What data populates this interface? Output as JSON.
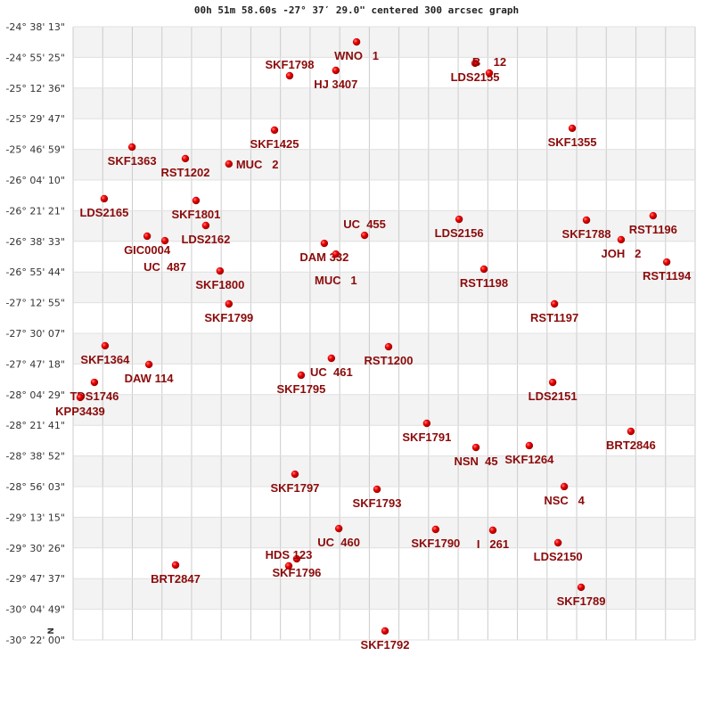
{
  "chart_data": {
    "type": "scatter",
    "title": "00h 51m 58.60s -27° 37′ 29.0\" centered 300 arcsec graph",
    "north_marker": "N",
    "grid": true,
    "x_columns": 21,
    "ylim": [
      -30.3667,
      -24.6369
    ],
    "y_ticks": [
      "-24° 38' 13\"",
      "-24° 55' 25\"",
      "-25° 12' 36\"",
      "-25° 29' 47\"",
      "-25° 46' 59\"",
      "-26° 04' 10\"",
      "-26° 21' 21\"",
      "-26° 38' 33\"",
      "-26° 55' 44\"",
      "-27° 12' 55\"",
      "-27° 30' 07\"",
      "-27° 47' 18\"",
      "-28° 04' 29\"",
      "-28° 21' 41\"",
      "-28° 38' 52\"",
      "-28° 56' 03\"",
      "-29° 13' 15\"",
      "-29° 30' 26\"",
      "-29° 47' 37\"",
      "-30° 04' 49\"",
      "-30° 22' 00\""
    ],
    "colors": {
      "point": "#dd0000",
      "label": "#8b0a0a",
      "band": "#f3f3f3",
      "grid": "#cccccc"
    },
    "points": [
      {
        "name": "WNO   1",
        "x": 9.57,
        "dec": -24.779
      },
      {
        "name": "HJ 3407",
        "x": 8.87,
        "dec": -25.045
      },
      {
        "name": "SKF1798",
        "x": 7.31,
        "dec": -25.095
      },
      {
        "name": "LDS2155",
        "x": 13.57,
        "dec": -24.978
      },
      {
        "name": "B    12",
        "x": 14.05,
        "dec": -25.07
      },
      {
        "name": "SKF1425",
        "x": 6.8,
        "dec": -25.603
      },
      {
        "name": "SKF1355",
        "x": 16.85,
        "dec": -25.586
      },
      {
        "name": "SKF1363",
        "x": 1.99,
        "dec": -25.761
      },
      {
        "name": "RST1202",
        "x": 3.79,
        "dec": -25.869
      },
      {
        "name": "MUC   2",
        "x": 5.26,
        "dec": -25.919
      },
      {
        "name": "LDS2165",
        "x": 1.05,
        "dec": -26.244
      },
      {
        "name": "SKF1801",
        "x": 4.15,
        "dec": -26.261
      },
      {
        "name": "LDS2162",
        "x": 4.48,
        "dec": -26.494
      },
      {
        "name": "GIC0004",
        "x": 2.5,
        "dec": -26.594
      },
      {
        "name": "UC  487",
        "x": 3.1,
        "dec": -26.636
      },
      {
        "name": "DAM 332",
        "x": 8.48,
        "dec": -26.661
      },
      {
        "name": "MUC   1",
        "x": 8.87,
        "dec": -26.761
      },
      {
        "name": "UC  455",
        "x": 9.84,
        "dec": -26.586
      },
      {
        "name": "LDS2156",
        "x": 13.03,
        "dec": -26.436
      },
      {
        "name": "SKF1788",
        "x": 17.33,
        "dec": -26.444
      },
      {
        "name": "RST1196",
        "x": 19.58,
        "dec": -26.403
      },
      {
        "name": "JOH   2",
        "x": 18.5,
        "dec": -26.627
      },
      {
        "name": "RST1194",
        "x": 20.04,
        "dec": -26.836
      },
      {
        "name": "SKF1800",
        "x": 4.96,
        "dec": -26.919
      },
      {
        "name": "RST1198",
        "x": 13.87,
        "dec": -26.902
      },
      {
        "name": "SKF1799",
        "x": 5.26,
        "dec": -27.227
      },
      {
        "name": "RST1197",
        "x": 16.25,
        "dec": -27.227
      },
      {
        "name": "SKF1364",
        "x": 1.08,
        "dec": -27.618
      },
      {
        "name": "RST1200",
        "x": 10.65,
        "dec": -27.627
      },
      {
        "name": "UC  461",
        "x": 8.72,
        "dec": -27.735
      },
      {
        "name": "DAW 114",
        "x": 2.56,
        "dec": -27.793
      },
      {
        "name": "SKF1795",
        "x": 7.7,
        "dec": -27.893
      },
      {
        "name": "LDS2151",
        "x": 16.19,
        "dec": -27.96
      },
      {
        "name": "TDS1746",
        "x": 0.72,
        "dec": -27.96
      },
      {
        "name": "KPP3439",
        "x": 0.24,
        "dec": -28.101
      },
      {
        "name": "SKF1791",
        "x": 11.94,
        "dec": -28.343
      },
      {
        "name": "BRT2846",
        "x": 18.83,
        "dec": -28.418
      },
      {
        "name": "SKF1264",
        "x": 15.4,
        "dec": -28.551
      },
      {
        "name": "NSN  45",
        "x": 13.6,
        "dec": -28.568
      },
      {
        "name": "SKF1797",
        "x": 7.49,
        "dec": -28.818
      },
      {
        "name": "SKF1793",
        "x": 10.26,
        "dec": -28.959
      },
      {
        "name": "NSC   4",
        "x": 16.58,
        "dec": -28.934
      },
      {
        "name": "UC  460",
        "x": 8.97,
        "dec": -29.326
      },
      {
        "name": "SKF1790",
        "x": 12.24,
        "dec": -29.334
      },
      {
        "name": "I   261",
        "x": 14.17,
        "dec": -29.342
      },
      {
        "name": "LDS2150",
        "x": 16.37,
        "dec": -29.459
      },
      {
        "name": "SKF1796",
        "x": 7.55,
        "dec": -29.609
      },
      {
        "name": "HDS 123",
        "x": 7.28,
        "dec": -29.675
      },
      {
        "name": "BRT2847",
        "x": 3.46,
        "dec": -29.667
      },
      {
        "name": "SKF1789",
        "x": 17.15,
        "dec": -29.875
      },
      {
        "name": "SKF1792",
        "x": 10.53,
        "dec": -30.283
      }
    ]
  }
}
